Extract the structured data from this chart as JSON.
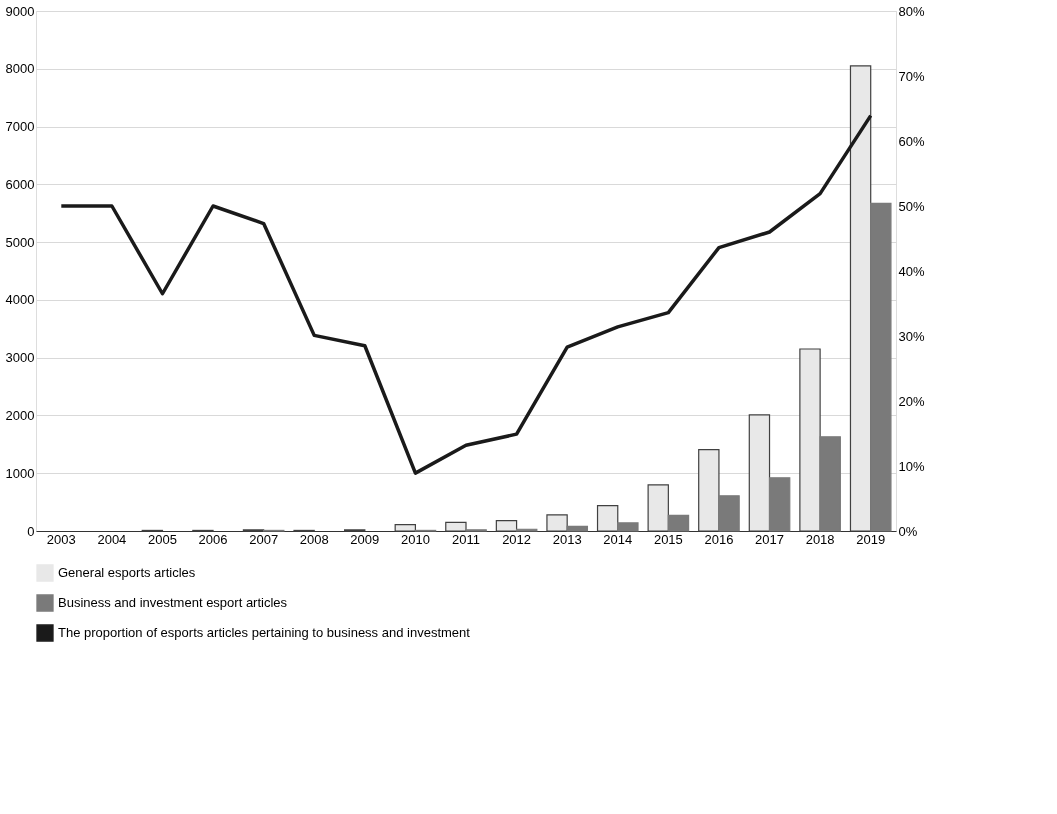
{
  "chart_data": {
    "type": "bar",
    "categories": [
      "2003",
      "2004",
      "2005",
      "2006",
      "2007",
      "2008",
      "2009",
      "2010",
      "2011",
      "2012",
      "2013",
      "2014",
      "2015",
      "2016",
      "2017",
      "2018",
      "2019"
    ],
    "series": [
      {
        "name": "General esports articles",
        "color": "#e8e8e8",
        "values": [
          0,
          0,
          10,
          10,
          20,
          10,
          20,
          110,
          150,
          180,
          280,
          440,
          800,
          1410,
          2010,
          3150,
          8050
        ]
      },
      {
        "name": "Business and investment esport articles",
        "color": "#7a7a7a",
        "values": [
          0,
          0,
          0,
          0,
          10,
          0,
          0,
          10,
          20,
          30,
          80,
          140,
          270,
          610,
          920,
          1630,
          5670
        ]
      },
      {
        "name": "The proportion of esports articles pertaining to business and investment",
        "type": "line",
        "axis": "y2",
        "color": "#1a1a1a",
        "values": [
          50.0,
          50.0,
          36.5,
          50.0,
          47.3,
          30.1,
          28.5,
          8.9,
          13.2,
          14.9,
          28.3,
          31.4,
          33.6,
          43.6,
          46.0,
          51.9,
          63.9
        ]
      }
    ],
    "ylim": [
      0,
      9000
    ],
    "yticks": [
      0,
      1000,
      2000,
      3000,
      4000,
      5000,
      6000,
      7000,
      8000,
      9000
    ],
    "y2lim": [
      0,
      80
    ],
    "y2ticks": [
      {
        "value": 0,
        "label": "0%"
      },
      {
        "value": 10,
        "label": "10%"
      },
      {
        "value": 20,
        "label": "20%"
      },
      {
        "value": 30,
        "label": "30%"
      },
      {
        "value": 40,
        "label": "40%"
      },
      {
        "value": 50,
        "label": "50%"
      },
      {
        "value": 60,
        "label": "60%"
      },
      {
        "value": 70,
        "label": "70%"
      },
      {
        "value": 80,
        "label": "80%"
      }
    ],
    "grid": "y",
    "legend": "bottom",
    "line_style": "solid",
    "marker": "none"
  }
}
